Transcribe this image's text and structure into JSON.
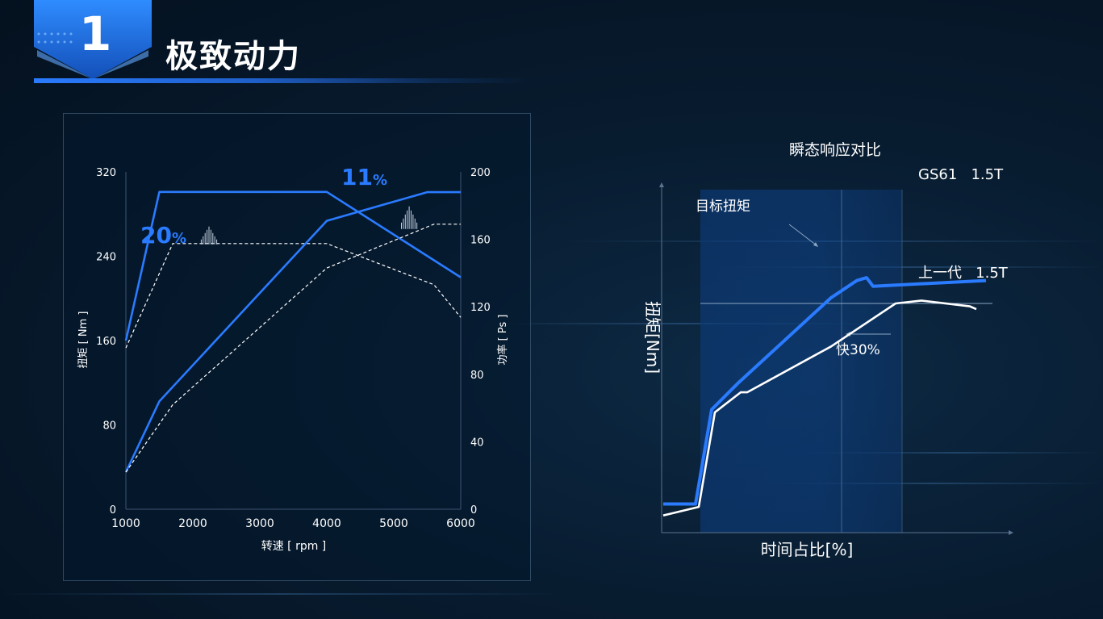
{
  "header": {
    "number": "1",
    "title": "极致动力"
  },
  "chart_data": [
    {
      "type": "line",
      "xlabel": "转速 [ rpm ]",
      "ylabel_left": "扭矩 [ Nm ]",
      "ylabel_right": "功率 [ Ps ]",
      "xlim": [
        1000,
        6000
      ],
      "ylim_left": [
        0,
        320
      ],
      "ylim_right": [
        0,
        200
      ],
      "x_ticks": [
        "1000",
        "2000",
        "3000",
        "4000",
        "5000",
        "6000"
      ],
      "y_ticks_left": [
        "0",
        "80",
        "160",
        "240",
        "320"
      ],
      "y_ticks_right": [
        "0",
        "40",
        "80",
        "120",
        "160",
        "200"
      ],
      "series": [
        {
          "axis": "left",
          "style": "solid",
          "color": "#2a7bff",
          "points": [
            [
              1000,
              160
            ],
            [
              1500,
              301
            ],
            [
              4000,
              301
            ],
            [
              6000,
              220
            ]
          ]
        },
        {
          "axis": "left",
          "style": "dashed",
          "color": "#ffffff",
          "points": [
            [
              1000,
              153
            ],
            [
              1700,
              252
            ],
            [
              4000,
              252
            ],
            [
              5600,
              213
            ],
            [
              6000,
              182
            ]
          ]
        },
        {
          "axis": "right",
          "style": "solid",
          "color": "#2a7bff",
          "points": [
            [
              1000,
              22
            ],
            [
              1500,
              64
            ],
            [
              4000,
              171
            ],
            [
              5500,
              188
            ],
            [
              6000,
              188
            ]
          ]
        },
        {
          "axis": "right",
          "style": "dashed",
          "color": "#ffffff",
          "points": [
            [
              1000,
              22
            ],
            [
              1700,
              62
            ],
            [
              4000,
              143
            ],
            [
              5600,
              169
            ],
            [
              6000,
              169
            ]
          ]
        }
      ],
      "annotations": [
        {
          "text_big": "20",
          "text_small": "%",
          "x": 2000,
          "y_left": 262,
          "color": "#2a7bff"
        },
        {
          "text_big": "11",
          "text_small": "%",
          "x": 5000,
          "y_left": 317,
          "color": "#2a7bff"
        }
      ]
    },
    {
      "type": "line",
      "title": "瞬态响应对比",
      "xlabel": "时间占比[%]",
      "ylabel": "扭矩[Nm]",
      "series": [
        {
          "name": "GS61   1.5T",
          "color": "#2a7bff",
          "points": [
            [
              0,
              10
            ],
            [
              10,
              10
            ],
            [
              15,
              43
            ],
            [
              23,
              52
            ],
            [
              52,
              82
            ],
            [
              60,
              88
            ],
            [
              63,
              89
            ],
            [
              65,
              86
            ],
            [
              100,
              88
            ]
          ]
        },
        {
          "name": "上一代   1.5T",
          "color": "#ffffff",
          "points": [
            [
              0,
              6
            ],
            [
              11,
              9
            ],
            [
              16,
              42
            ],
            [
              24,
              49
            ],
            [
              26,
              49
            ],
            [
              52,
              65
            ],
            [
              72,
              80
            ],
            [
              80,
              81
            ],
            [
              95,
              79
            ],
            [
              97,
              78
            ]
          ]
        }
      ],
      "reference": {
        "label": "目标扭矩",
        "y": 80
      },
      "annotation": "快30%"
    }
  ]
}
